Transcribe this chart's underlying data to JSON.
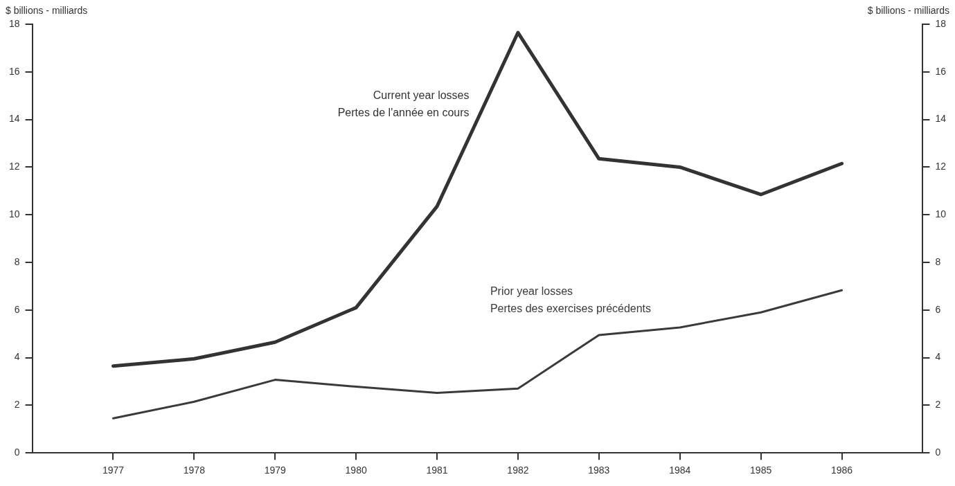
{
  "chart_data": {
    "type": "line",
    "ylabel": "$ billions - milliards",
    "y2label": "$ billions - milliards",
    "x": [
      1977,
      1978,
      1979,
      1980,
      1981,
      1982,
      1983,
      1984,
      1985,
      1986
    ],
    "xlim": [
      1976,
      1987
    ],
    "xticks": [
      1977,
      1978,
      1979,
      1980,
      1981,
      1982,
      1983,
      1984,
      1985,
      1986
    ],
    "ylim": [
      0,
      18
    ],
    "yticks": [
      0,
      2,
      4,
      6,
      8,
      10,
      12,
      14,
      16,
      18
    ],
    "y2lim": [
      0,
      18
    ],
    "y2ticks": [
      0,
      2,
      4,
      6,
      8,
      10,
      12,
      14,
      16,
      18
    ],
    "grid": false,
    "legend": false,
    "marker": "none",
    "line_style": "solid",
    "series": [
      {
        "name": "Current year losses\nPertes de l'année en cours",
        "color": "#333333",
        "values": [
          3.65,
          3.95,
          4.65,
          6.1,
          10.35,
          17.65,
          12.35,
          12.0,
          10.85,
          12.15
        ]
      },
      {
        "name": "Prior year losses\nPertes des exercises précédents",
        "color": "#3a3a3a",
        "values": [
          1.45,
          2.15,
          3.07,
          2.78,
          2.52,
          2.7,
          4.95,
          5.27,
          5.9,
          6.83
        ]
      }
    ]
  }
}
